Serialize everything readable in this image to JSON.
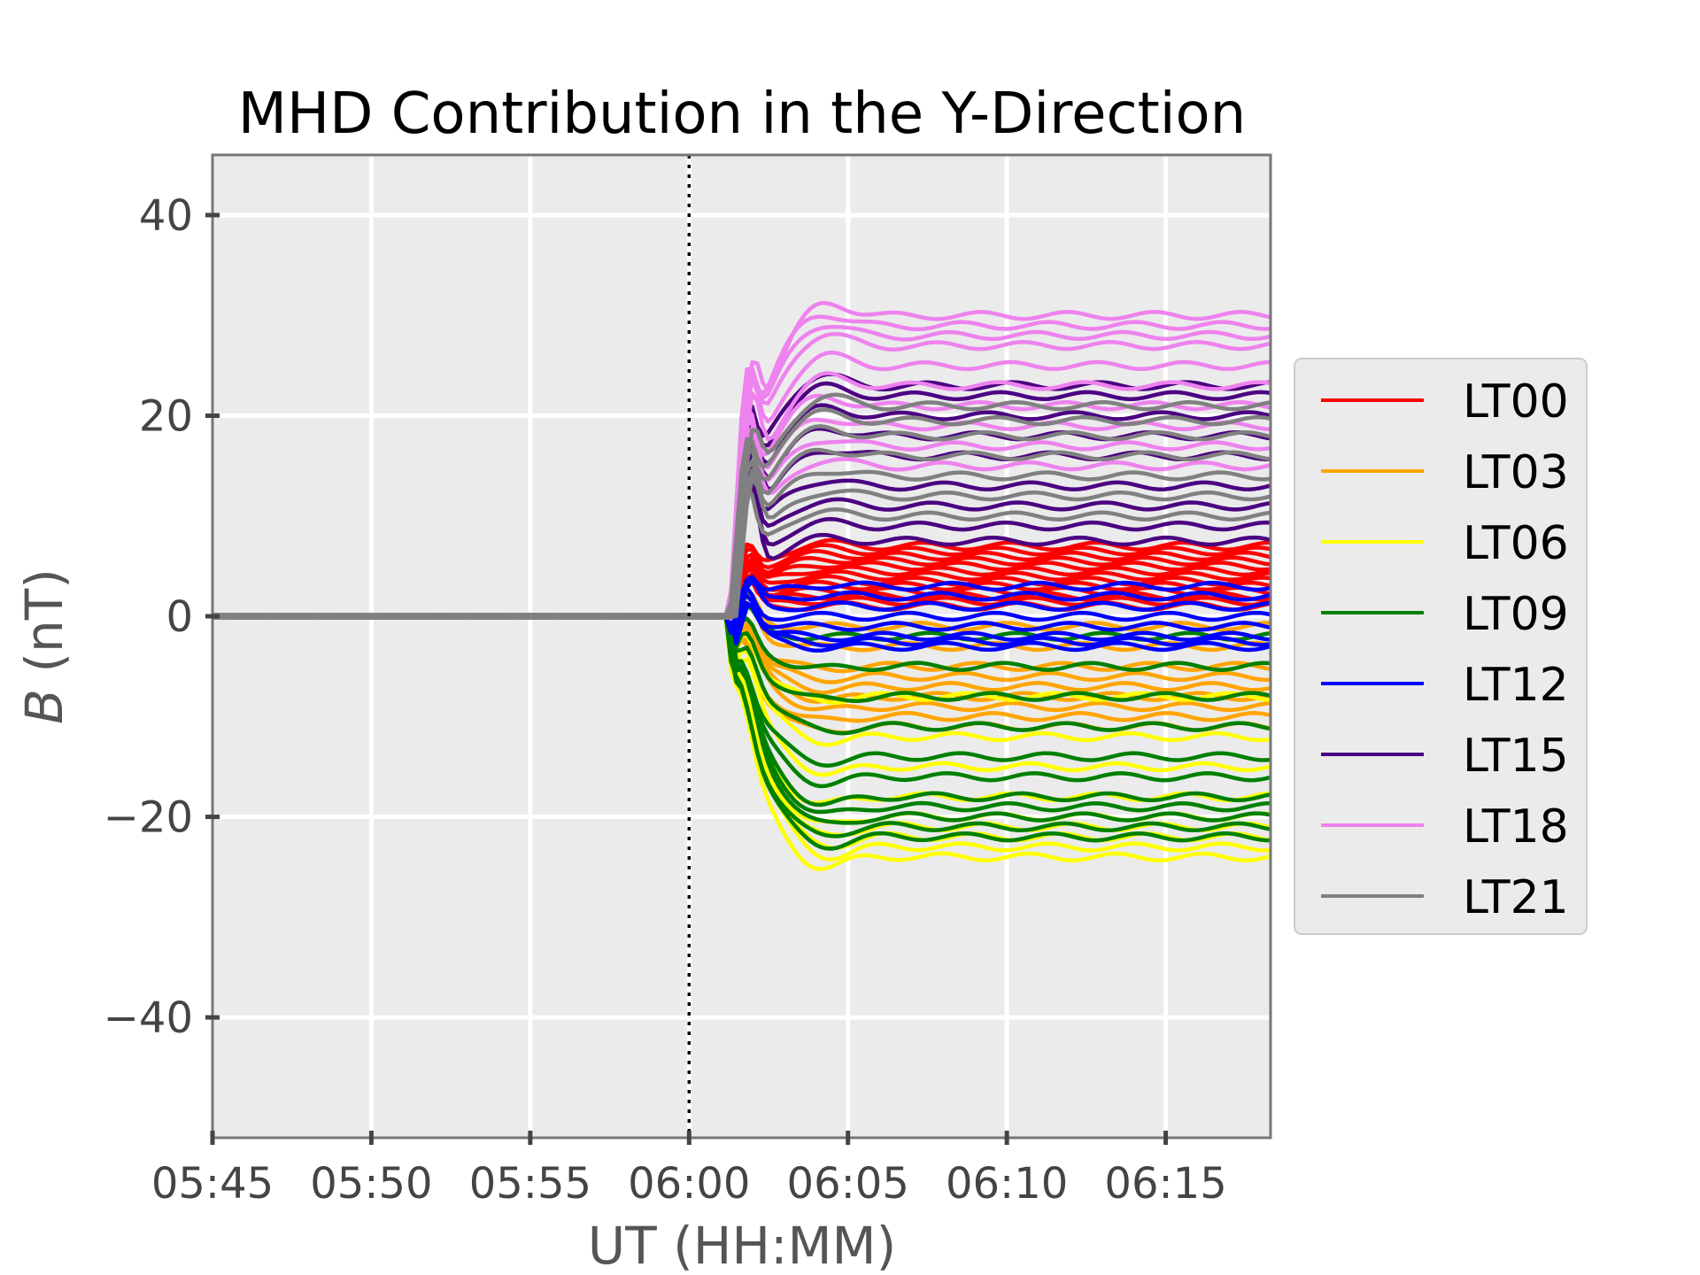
{
  "chart_data": {
    "type": "line",
    "title": "MHD Contribution in the Y-Direction",
    "xlabel": "UT (HH:MM)",
    "ylabel_symbol": "B",
    "ylabel_unit": "(nT)",
    "x_ticks": [
      {
        "value": 0,
        "label": "05:45"
      },
      {
        "value": 5,
        "label": "05:50"
      },
      {
        "value": 10,
        "label": "05:55"
      },
      {
        "value": 15,
        "label": "06:00"
      },
      {
        "value": 20,
        "label": "06:05"
      },
      {
        "value": 25,
        "label": "06:10"
      },
      {
        "value": 30,
        "label": "06:15"
      }
    ],
    "y_ticks": [
      {
        "value": 40,
        "label": "40"
      },
      {
        "value": 20,
        "label": "20"
      },
      {
        "value": 0,
        "label": "0"
      },
      {
        "value": -20,
        "label": "−20"
      },
      {
        "value": -40,
        "label": "−40"
      }
    ],
    "xlim": [
      0,
      33.3
    ],
    "ylim": [
      -52,
      46
    ],
    "vline_x": 15,
    "grid": true,
    "background": "#ebebeb",
    "legend_position": "right",
    "series": [
      {
        "name": "LT00",
        "color": "#ff0000",
        "final_values": [
          7.0,
          6.5,
          6.0,
          5.5,
          5.0,
          4.5,
          4.0,
          3.5,
          3.0,
          2.5,
          2.0,
          1.5,
          1.0
        ],
        "onset_peak": 9.5
      },
      {
        "name": "LT03",
        "color": "#ffa500",
        "final_values": [
          -1.0,
          -3.0,
          -5.0,
          -6.0,
          -7.0,
          -8.0,
          -9.0,
          -10.0,
          -11.0
        ],
        "onset_peak": 7.0
      },
      {
        "name": "LT06",
        "color": "#ffff00",
        "final_values": [
          -8.0,
          -12.0,
          -15.0,
          -18.0,
          -20.0,
          -21.0,
          -22.0,
          -23.0,
          -24.0
        ],
        "onset_peak": 6.0
      },
      {
        "name": "LT09",
        "color": "#008000",
        "final_values": [
          -2.0,
          -5.0,
          -8.0,
          -11.0,
          -14.0,
          -16.0,
          -18.0,
          -19.0,
          -20.0,
          -21.0,
          -22.0
        ],
        "onset_peak": 5.0
      },
      {
        "name": "LT12",
        "color": "#0000ff",
        "final_values": [
          3.0,
          2.0,
          1.0,
          0.0,
          -1.0,
          -2.0,
          -2.5,
          -3.0
        ],
        "onset_peak": 7.5
      },
      {
        "name": "LT15",
        "color": "#4b0082",
        "final_values": [
          23.0,
          22.0,
          20.0,
          18.0,
          16.0,
          13.0,
          11.0,
          9.0,
          7.5
        ],
        "onset_peak": 26.5
      },
      {
        "name": "LT18",
        "color": "#ee82ee",
        "final_values": [
          30.0,
          29.0,
          28.0,
          27.0,
          25.0,
          23.0,
          21.0,
          19.0,
          17.0,
          15.0
        ],
        "onset_peak": 30.0
      },
      {
        "name": "LT21",
        "color": "#808080",
        "final_values": [
          21.0,
          19.5,
          18.0,
          16.0,
          14.0,
          12.0,
          10.0
        ],
        "onset_peak": 22.0
      }
    ]
  }
}
